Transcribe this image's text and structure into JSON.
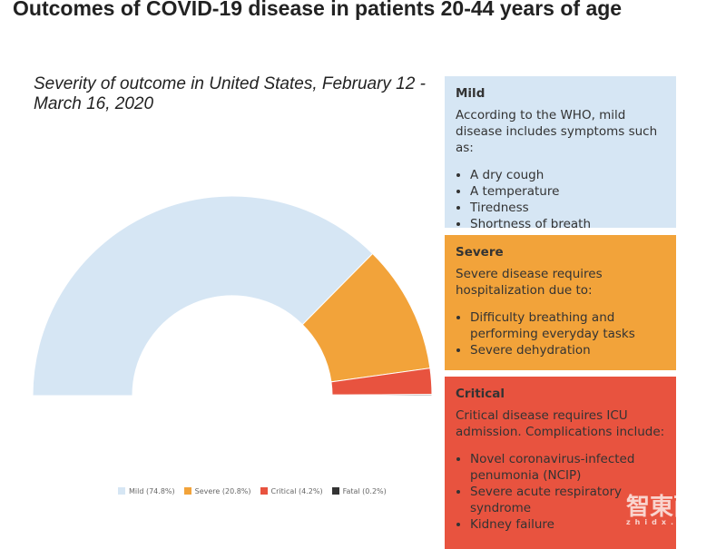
{
  "title": "Outcomes of COVID-19 disease in patients 20-44 years of age",
  "chart_data": {
    "type": "pie",
    "subtype": "semi-donut",
    "title": "Severity of outcome in United States, February 12 - March 16, 2020",
    "categories": [
      "Mild",
      "Severe",
      "Critical",
      "Fatal"
    ],
    "values": [
      74.8,
      20.8,
      4.2,
      0.2
    ],
    "legend_labels": [
      "Mild (74.8%)",
      "Severe (20.8%)",
      "Critical (4.2%)",
      "Fatal (0.2%)"
    ],
    "colors": [
      "#d6e6f4",
      "#f2a33a",
      "#e8533f",
      "#333333"
    ],
    "legend_position": "bottom"
  },
  "boxes": [
    {
      "title": "Mild",
      "color": "#d6e6f4",
      "text": "According to the WHO, mild disease includes symptoms such as:",
      "items": [
        "A dry cough",
        "A temperature",
        "Tiredness",
        "Shortness of breath"
      ]
    },
    {
      "title": "Severe",
      "color": "#f2a33a",
      "text": "Severe disease requires hospitalization due to:",
      "items": [
        "Difficulty breathing and performing everyday tasks",
        "Severe dehydration"
      ]
    },
    {
      "title": "Critical",
      "color": "#e8533f",
      "text": "Critical disease requires ICU admission. Complications include:",
      "items": [
        "Novel coronavirus-infected penumonia (NCIP)",
        "Severe acute respiratory syndrome",
        "Kidney failure"
      ]
    }
  ],
  "watermark": {
    "logo": "智東西",
    "domain": "zhidx.com"
  }
}
